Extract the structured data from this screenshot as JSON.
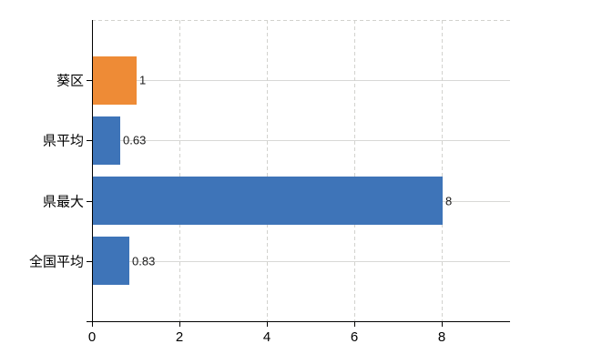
{
  "chart_data": {
    "type": "bar",
    "orientation": "horizontal",
    "title": "",
    "xlabel": "",
    "ylabel": "",
    "categories": [
      "葵区",
      "県平均",
      "県最大",
      "全国平均"
    ],
    "values": [
      1,
      0.63,
      8,
      0.83
    ],
    "value_labels": [
      "1",
      "0.63",
      "8",
      "0.83"
    ],
    "bar_colors": [
      "#ee8b36",
      "#3e74b8",
      "#3e74b8",
      "#3e74b8"
    ],
    "x_ticks": [
      0,
      2,
      4,
      6,
      8
    ],
    "x_tick_labels": [
      "0",
      "2",
      "4",
      "6",
      "8"
    ],
    "xlim": [
      0,
      9.56
    ],
    "grid": true,
    "legend": false,
    "colors": {
      "bar_blue": "#3e74b8",
      "bar_orange": "#ee8b36",
      "gridline": "#d8d8d6",
      "axis": "#000000",
      "text": "#000000",
      "background": "#ffffff"
    }
  }
}
